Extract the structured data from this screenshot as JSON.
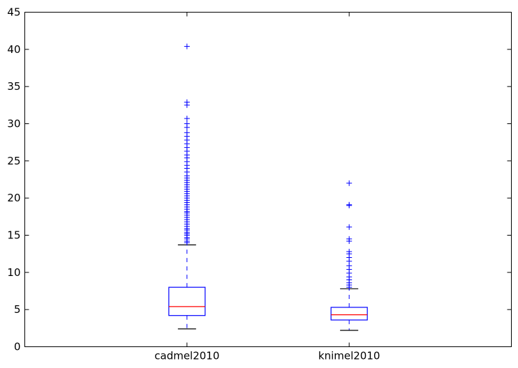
{
  "chart_data": {
    "type": "box",
    "title": "",
    "xlabel": "",
    "ylabel": "",
    "ylim": [
      0,
      45
    ],
    "yticks": [
      0,
      5,
      10,
      15,
      20,
      25,
      30,
      35,
      40,
      45
    ],
    "grid": false,
    "categories": [
      "cadmel2010",
      "knimel2010"
    ],
    "colors": {
      "box": "#0000ff",
      "median": "#ff0000",
      "cap": "#000000",
      "flier": "#0000ff"
    },
    "boxes": [
      {
        "category": "cadmel2010",
        "whisker_low": 2.4,
        "q1": 4.2,
        "median": 5.4,
        "q3": 8.0,
        "whisker_high": 13.7,
        "fliers": [
          14.0,
          14.2,
          14.5,
          14.7,
          15.0,
          15.2,
          15.4,
          15.7,
          15.9,
          16.2,
          16.5,
          16.8,
          17.1,
          17.4,
          17.7,
          18.0,
          18.2,
          18.5,
          18.8,
          19.1,
          19.4,
          19.7,
          20.0,
          20.3,
          20.6,
          20.9,
          21.2,
          21.5,
          21.8,
          22.1,
          22.4,
          22.7,
          23.0,
          23.5,
          24.0,
          24.4,
          24.9,
          25.4,
          25.8,
          26.3,
          26.8,
          27.3,
          27.8,
          28.3,
          28.8,
          29.5,
          30.0,
          30.7,
          32.5,
          32.9,
          40.4
        ]
      },
      {
        "category": "knimel2010",
        "whisker_low": 2.2,
        "q1": 3.6,
        "median": 4.3,
        "q3": 5.3,
        "whisker_high": 7.8,
        "fliers": [
          8.0,
          8.3,
          8.6,
          9.0,
          9.4,
          9.9,
          10.4,
          10.9,
          11.5,
          12.0,
          12.5,
          12.8,
          14.2,
          14.5,
          16.1,
          19.0,
          19.1,
          22.0
        ]
      }
    ]
  }
}
